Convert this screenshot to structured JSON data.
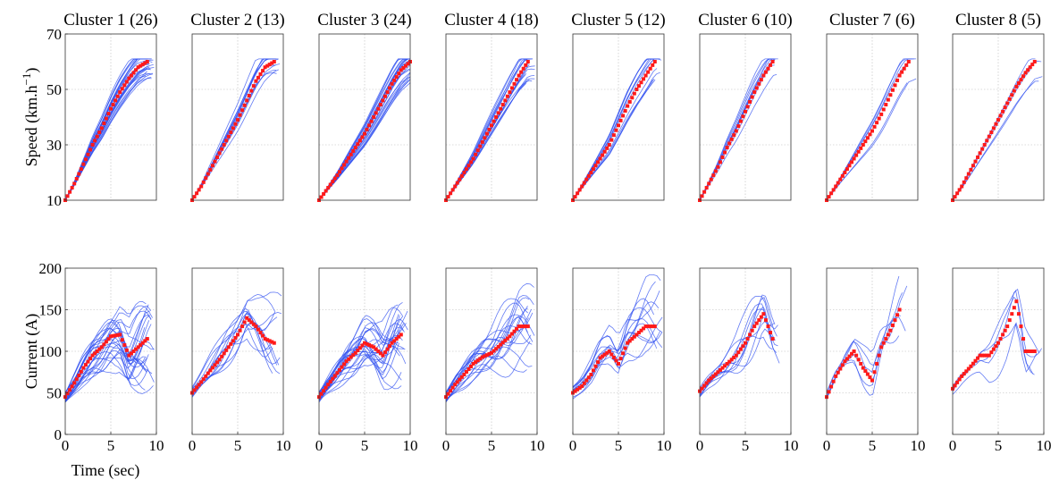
{
  "chart_data": {
    "type": "line",
    "layout": "small multiples, 2 rows x 8 columns",
    "panels_title": [
      "Cluster 1 (26)",
      "Cluster 2 (13)",
      "Cluster 3 (24)",
      "Cluster 4  (18)",
      "Cluster 5 (12)",
      "Cluster 6 (10)",
      "Cluster 7 (6)",
      "Cluster 8 (5)"
    ],
    "cluster_counts": [
      26,
      13,
      24,
      18,
      12,
      10,
      6,
      5
    ],
    "xlabel": "Time (sec)",
    "xlim": [
      0,
      10
    ],
    "xticks": [
      0,
      5,
      10
    ],
    "grid": true,
    "series_style": {
      "members": {
        "color": "#2f4ff0",
        "style": "thin solid lines"
      },
      "centroid": {
        "color": "#ff1a1a",
        "style": "dotted markers"
      }
    },
    "rows": [
      {
        "ylabel": "Speed (km.h",
        "ylabel_superscript": "−1",
        "ylabel_close": ")",
        "ylim": [
          10,
          70
        ],
        "yticks": [
          10,
          30,
          50,
          70
        ],
        "centroids": [
          {
            "x": [
              0,
              1,
              2,
              3,
              4,
              5,
              6,
              7,
              8,
              9
            ],
            "y": [
              10,
              16,
              23,
              30,
              36,
              43,
              49,
              54,
              58,
              60
            ]
          },
          {
            "x": [
              0,
              1,
              2,
              3,
              4,
              5,
              6,
              7,
              8,
              9
            ],
            "y": [
              10,
              15,
              21,
              27,
              33,
              39,
              46,
              53,
              58,
              60
            ]
          },
          {
            "x": [
              0,
              1,
              2,
              3,
              4,
              5,
              6,
              7,
              8,
              9,
              10
            ],
            "y": [
              10,
              14.5,
              19,
              24,
              29,
              34,
              40,
              46,
              52,
              57,
              60
            ]
          },
          {
            "x": [
              0,
              1,
              2,
              3,
              4,
              5,
              6,
              7,
              8,
              9
            ],
            "y": [
              10,
              15,
              20,
              25,
              31,
              37,
              43,
              49,
              55,
              60
            ]
          },
          {
            "x": [
              0,
              1,
              2,
              3,
              4,
              5,
              6,
              7,
              8,
              9
            ],
            "y": [
              10,
              15,
              20,
              25,
              30,
              37,
              44,
              50,
              55,
              60
            ]
          },
          {
            "x": [
              0,
              1,
              2,
              3,
              4,
              5,
              6,
              7,
              8
            ],
            "y": [
              10,
              16,
              22,
              29,
              35,
              42,
              49,
              55,
              60
            ]
          },
          {
            "x": [
              0,
              1,
              2,
              3,
              4,
              5,
              6,
              7,
              8,
              9
            ],
            "y": [
              10,
              15,
              20,
              25,
              30,
              35,
              41,
              48,
              55,
              60
            ]
          },
          {
            "x": [
              0,
              1,
              2,
              3,
              4,
              5,
              6,
              7,
              8,
              9
            ],
            "y": [
              10,
              15,
              21,
              27,
              33,
              39,
              45,
              51,
              56,
              60
            ]
          }
        ]
      },
      {
        "ylabel": "Current (A)",
        "ylim": [
          0,
          200
        ],
        "yticks": [
          0,
          50,
          100,
          150,
          200
        ],
        "centroids": [
          {
            "x": [
              0,
              1,
              2,
              3,
              4,
              5,
              6,
              7,
              8,
              9
            ],
            "y": [
              45,
              62,
              80,
              95,
              105,
              118,
              120,
              95,
              105,
              115
            ]
          },
          {
            "x": [
              0,
              1,
              2,
              3,
              4,
              5,
              6,
              7,
              8,
              9
            ],
            "y": [
              50,
              63,
              77,
              90,
              105,
              120,
              140,
              130,
              115,
              110
            ]
          },
          {
            "x": [
              0,
              1,
              2,
              3,
              4,
              5,
              6,
              7,
              8,
              9
            ],
            "y": [
              45,
              60,
              74,
              88,
              98,
              110,
              105,
              95,
              110,
              120
            ]
          },
          {
            "x": [
              0,
              1,
              2,
              3,
              4,
              5,
              6,
              7,
              8,
              9
            ],
            "y": [
              45,
              60,
              72,
              85,
              93,
              98,
              108,
              118,
              130,
              130
            ]
          },
          {
            "x": [
              0,
              1,
              2,
              3,
              4,
              5,
              6,
              7,
              8,
              9
            ],
            "y": [
              50,
              58,
              72,
              92,
              100,
              85,
              110,
              120,
              130,
              130
            ]
          },
          {
            "x": [
              0,
              1,
              2,
              3,
              4,
              5,
              6,
              7,
              8
            ],
            "y": [
              52,
              65,
              75,
              85,
              95,
              110,
              130,
              145,
              115
            ]
          },
          {
            "x": [
              0,
              1,
              2,
              3,
              4,
              5,
              6,
              7,
              8
            ],
            "y": [
              45,
              70,
              88,
              100,
              80,
              65,
              105,
              125,
              150
            ]
          },
          {
            "x": [
              0,
              1,
              2,
              3,
              4,
              5,
              6,
              7,
              8,
              9
            ],
            "y": [
              55,
              70,
              82,
              95,
              95,
              110,
              130,
              160,
              100,
              100
            ]
          }
        ]
      }
    ]
  }
}
